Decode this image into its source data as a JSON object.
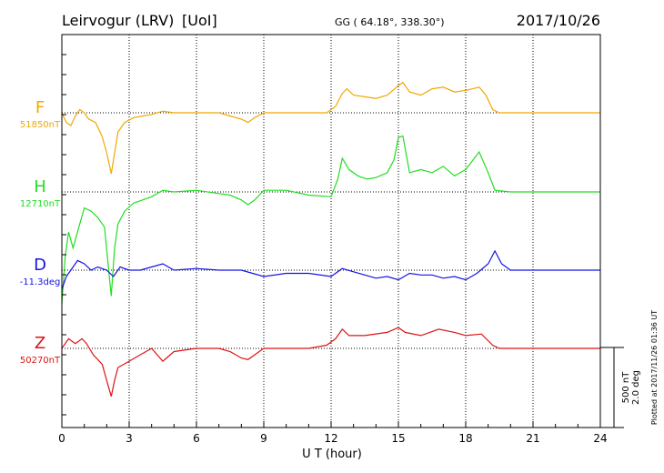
{
  "header": {
    "station": "Leirvogur (LRV)",
    "institute": "[UoI]",
    "coords": "GG ( 64.18°, 338.30°)",
    "date": "2017/10/26"
  },
  "side_note": "Plotted at 2017/11/26 01:36 UT",
  "scale_labels": [
    "500 nT",
    "2.0 deg"
  ],
  "chart_data": {
    "type": "line",
    "xlabel": "U T (hour)",
    "xlim": [
      0,
      24
    ],
    "xticks": [
      0,
      3,
      6,
      9,
      12,
      15,
      18,
      21,
      24
    ],
    "grid": true,
    "units_per_panel": "500 nT or 2.0 deg",
    "series": [
      {
        "name": "F",
        "baseline_label": "51850nT",
        "color": "#f0a800",
        "points": [
          [
            0,
            0
          ],
          [
            0.2,
            -60
          ],
          [
            0.4,
            -80
          ],
          [
            0.6,
            -20
          ],
          [
            0.8,
            20
          ],
          [
            1.0,
            0
          ],
          [
            1.2,
            -40
          ],
          [
            1.5,
            -60
          ],
          [
            1.8,
            -150
          ],
          [
            2.0,
            -250
          ],
          [
            2.2,
            -380
          ],
          [
            2.35,
            -250
          ],
          [
            2.5,
            -120
          ],
          [
            2.8,
            -60
          ],
          [
            3.2,
            -30
          ],
          [
            3.6,
            -20
          ],
          [
            4.0,
            -10
          ],
          [
            4.5,
            10
          ],
          [
            5.0,
            0
          ],
          [
            6.0,
            0
          ],
          [
            7.0,
            0
          ],
          [
            7.5,
            -20
          ],
          [
            8.0,
            -40
          ],
          [
            8.3,
            -60
          ],
          [
            8.6,
            -30
          ],
          [
            9.0,
            0
          ],
          [
            10,
            0
          ],
          [
            11,
            0
          ],
          [
            11.8,
            0
          ],
          [
            12.2,
            40
          ],
          [
            12.5,
            120
          ],
          [
            12.7,
            150
          ],
          [
            13,
            110
          ],
          [
            13.5,
            100
          ],
          [
            14,
            90
          ],
          [
            14.5,
            110
          ],
          [
            15,
            170
          ],
          [
            15.2,
            190
          ],
          [
            15.5,
            130
          ],
          [
            16,
            110
          ],
          [
            16.5,
            150
          ],
          [
            17,
            160
          ],
          [
            17.5,
            130
          ],
          [
            18,
            140
          ],
          [
            18.6,
            160
          ],
          [
            18.9,
            110
          ],
          [
            19.2,
            20
          ],
          [
            19.5,
            0
          ],
          [
            20,
            0
          ],
          [
            21,
            0
          ],
          [
            22,
            0
          ],
          [
            23,
            0
          ],
          [
            24,
            0
          ]
        ]
      },
      {
        "name": "H",
        "baseline_label": "12710nT",
        "color": "#22dd22",
        "points": [
          [
            0,
            -700
          ],
          [
            0.15,
            -400
          ],
          [
            0.3,
            -250
          ],
          [
            0.5,
            -350
          ],
          [
            0.8,
            -200
          ],
          [
            1.0,
            -100
          ],
          [
            1.3,
            -120
          ],
          [
            1.6,
            -160
          ],
          [
            1.9,
            -220
          ],
          [
            2.2,
            -650
          ],
          [
            2.35,
            -350
          ],
          [
            2.5,
            -200
          ],
          [
            2.8,
            -120
          ],
          [
            3.2,
            -70
          ],
          [
            3.6,
            -50
          ],
          [
            4.0,
            -30
          ],
          [
            4.5,
            10
          ],
          [
            5.0,
            0
          ],
          [
            6.0,
            10
          ],
          [
            7.0,
            -10
          ],
          [
            7.5,
            -20
          ],
          [
            8.0,
            -50
          ],
          [
            8.3,
            -80
          ],
          [
            8.6,
            -50
          ],
          [
            9.0,
            10
          ],
          [
            10,
            10
          ],
          [
            11,
            -20
          ],
          [
            12,
            -30
          ],
          [
            12.3,
            80
          ],
          [
            12.5,
            210
          ],
          [
            12.8,
            140
          ],
          [
            13.2,
            100
          ],
          [
            13.6,
            80
          ],
          [
            14,
            90
          ],
          [
            14.5,
            120
          ],
          [
            14.8,
            200
          ],
          [
            15,
            340
          ],
          [
            15.2,
            350
          ],
          [
            15.5,
            120
          ],
          [
            16,
            140
          ],
          [
            16.5,
            120
          ],
          [
            17,
            160
          ],
          [
            17.5,
            100
          ],
          [
            18,
            140
          ],
          [
            18.6,
            250
          ],
          [
            19.0,
            120
          ],
          [
            19.3,
            10
          ],
          [
            20,
            0
          ],
          [
            21,
            0
          ],
          [
            22,
            0
          ],
          [
            23,
            0
          ],
          [
            24,
            0
          ]
        ]
      },
      {
        "name": "D",
        "baseline_label": "-11.3deg",
        "color": "#1414e6",
        "points": [
          [
            0,
            -120
          ],
          [
            0.2,
            -40
          ],
          [
            0.4,
            0
          ],
          [
            0.7,
            60
          ],
          [
            1.0,
            40
          ],
          [
            1.3,
            0
          ],
          [
            1.6,
            20
          ],
          [
            2.0,
            0
          ],
          [
            2.3,
            -40
          ],
          [
            2.6,
            20
          ],
          [
            3.0,
            0
          ],
          [
            3.5,
            0
          ],
          [
            4.0,
            20
          ],
          [
            4.5,
            40
          ],
          [
            5.0,
            0
          ],
          [
            6.0,
            10
          ],
          [
            7.0,
            0
          ],
          [
            8.0,
            0
          ],
          [
            8.5,
            -20
          ],
          [
            9.0,
            -40
          ],
          [
            10,
            -20
          ],
          [
            11,
            -20
          ],
          [
            12,
            -40
          ],
          [
            12.5,
            10
          ],
          [
            13,
            -10
          ],
          [
            13.5,
            -30
          ],
          [
            14,
            -50
          ],
          [
            14.5,
            -40
          ],
          [
            15,
            -60
          ],
          [
            15.5,
            -20
          ],
          [
            16,
            -30
          ],
          [
            16.5,
            -30
          ],
          [
            17,
            -50
          ],
          [
            17.5,
            -40
          ],
          [
            18,
            -60
          ],
          [
            18.5,
            -20
          ],
          [
            19.0,
            40
          ],
          [
            19.3,
            120
          ],
          [
            19.6,
            40
          ],
          [
            20,
            0
          ],
          [
            21,
            0
          ],
          [
            22,
            0
          ],
          [
            23,
            0
          ],
          [
            24,
            0
          ]
        ]
      },
      {
        "name": "Z",
        "baseline_label": "50270nT",
        "color": "#dd1414",
        "points": [
          [
            0,
            0
          ],
          [
            0.3,
            60
          ],
          [
            0.6,
            30
          ],
          [
            0.9,
            60
          ],
          [
            1.1,
            30
          ],
          [
            1.4,
            -40
          ],
          [
            1.8,
            -100
          ],
          [
            2.0,
            -200
          ],
          [
            2.2,
            -300
          ],
          [
            2.35,
            -200
          ],
          [
            2.5,
            -120
          ],
          [
            3.0,
            -80
          ],
          [
            3.5,
            -40
          ],
          [
            4.0,
            0
          ],
          [
            4.5,
            -80
          ],
          [
            5.0,
            -20
          ],
          [
            6.0,
            0
          ],
          [
            7.0,
            0
          ],
          [
            7.5,
            -20
          ],
          [
            8.0,
            -60
          ],
          [
            8.3,
            -70
          ],
          [
            8.6,
            -40
          ],
          [
            9.0,
            0
          ],
          [
            10,
            0
          ],
          [
            11,
            0
          ],
          [
            11.8,
            20
          ],
          [
            12.2,
            60
          ],
          [
            12.5,
            120
          ],
          [
            12.8,
            80
          ],
          [
            13.5,
            80
          ],
          [
            14.5,
            100
          ],
          [
            15,
            130
          ],
          [
            15.3,
            100
          ],
          [
            16,
            80
          ],
          [
            16.8,
            120
          ],
          [
            17.5,
            100
          ],
          [
            18,
            80
          ],
          [
            18.7,
            90
          ],
          [
            19.2,
            20
          ],
          [
            19.5,
            0
          ],
          [
            20,
            0
          ],
          [
            21,
            0
          ],
          [
            22,
            0
          ],
          [
            23,
            0
          ],
          [
            24,
            0
          ]
        ]
      }
    ]
  }
}
